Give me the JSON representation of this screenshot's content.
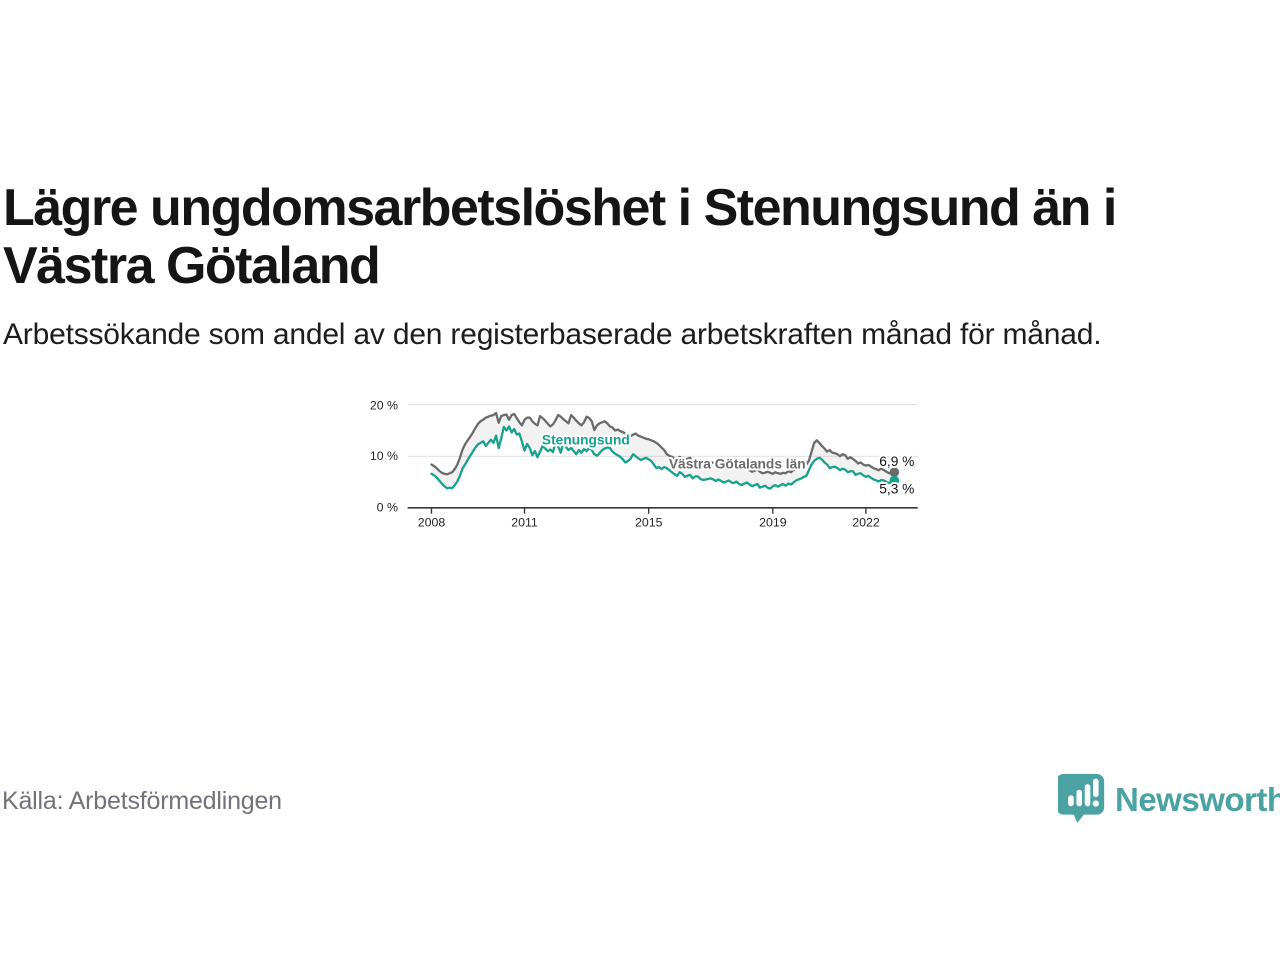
{
  "header": {
    "title": "Lägre ungdomsarbetslöshet i Stenungsund än i Västra Götaland",
    "subtitle": "Arbetssökande som andel av den registerbaserade arbetskraften månad för månad."
  },
  "footer": {
    "source": "Källa: Arbetsförmedlingen",
    "brand": "Newsworthy"
  },
  "colors": {
    "stenungsund_teal": "#16a28d",
    "county_gray": "#6b6b6b",
    "grid": "#d8d8d8",
    "axis": "#383838",
    "band_fill": "rgba(0,0,0,0.05)",
    "brand_teal": "#4ba2a2"
  },
  "chart_data": {
    "type": "line",
    "title": "Lägre ungdomsarbetslöshet i Stenungsund än i Västra Götaland",
    "xlabel": "",
    "ylabel": "",
    "x_start_year": 2008,
    "x_months_per_point": 1,
    "ylim": [
      0,
      20
    ],
    "grid": true,
    "band_fill_between_series": true,
    "y_axis": {
      "tick_values": [
        0,
        10,
        20
      ],
      "tick_labels": [
        "0 %",
        "10 %",
        "20 %"
      ]
    },
    "x_axis": {
      "tick_years": [
        2008,
        2011,
        2015,
        2019,
        2022
      ],
      "tick_labels": [
        "2008",
        "2011",
        "2015",
        "2019",
        "2022"
      ]
    },
    "series": [
      {
        "name": "Stenungsund",
        "color": "#16a28d",
        "end_label": "5,3 %",
        "end_value": 5.3,
        "values": [
          6.6,
          6.3,
          5.9,
          5.3,
          4.7,
          4.2,
          3.8,
          3.9,
          3.8,
          4.4,
          5.1,
          6.2,
          7.6,
          8.4,
          9.3,
          10.1,
          10.9,
          11.7,
          12.3,
          12.6,
          12.9,
          12.0,
          12.6,
          13.2,
          12.6,
          14.0,
          11.6,
          13.5,
          15.7,
          15.0,
          15.8,
          14.6,
          15.3,
          14.2,
          14.4,
          12.8,
          11.1,
          12.4,
          11.6,
          10.2,
          11.0,
          9.8,
          10.9,
          12.0,
          11.5,
          11.0,
          11.3,
          10.8,
          12.8,
          11.9,
          10.7,
          12.6,
          11.8,
          11.2,
          11.6,
          11.0,
          10.4,
          11.2,
          10.7,
          11.4,
          11.0,
          11.6,
          11.2,
          10.4,
          10.1,
          10.6,
          11.2,
          11.5,
          11.7,
          11.6,
          10.9,
          10.5,
          10.2,
          9.9,
          9.4,
          8.8,
          9.1,
          9.5,
          10.4,
          10.0,
          9.6,
          9.3,
          9.5,
          9.7,
          9.4,
          9.1,
          8.4,
          7.7,
          7.9,
          7.5,
          7.9,
          7.7,
          7.3,
          6.9,
          6.5,
          6.2,
          6.9,
          6.6,
          6.0,
          6.2,
          6.4,
          5.7,
          6.1,
          6.1,
          5.6,
          5.4,
          5.5,
          5.6,
          5.7,
          5.5,
          5.2,
          5.5,
          5.2,
          4.9,
          5.1,
          5.3,
          4.9,
          4.8,
          5.1,
          4.6,
          4.4,
          4.7,
          4.9,
          4.5,
          4.2,
          4.4,
          4.6,
          3.9,
          4.1,
          4.3,
          3.9,
          3.7,
          4.2,
          4.4,
          4.1,
          4.4,
          4.6,
          4.3,
          4.7,
          4.5,
          4.9,
          5.3,
          5.5,
          5.7,
          6.0,
          6.2,
          7.3,
          8.4,
          9.1,
          9.5,
          9.7,
          9.4,
          8.8,
          8.4,
          7.7,
          7.9,
          8.0,
          7.7,
          7.3,
          7.6,
          7.4,
          6.9,
          7.1,
          7.1,
          6.4,
          6.6,
          6.7,
          6.3,
          6.0,
          6.2,
          5.8,
          5.5,
          5.3,
          5.1,
          5.4,
          5.3,
          5.0,
          4.8,
          5.0,
          5.3
        ]
      },
      {
        "name": "Västra Götalands län",
        "color": "#6b6b6b",
        "end_label": "6,9 %",
        "end_value": 6.9,
        "values": [
          8.4,
          8.1,
          7.7,
          7.2,
          6.8,
          6.6,
          6.5,
          6.7,
          6.9,
          7.5,
          8.4,
          9.7,
          11.3,
          12.3,
          13.1,
          13.8,
          14.6,
          15.5,
          16.3,
          16.8,
          17.1,
          17.5,
          17.7,
          17.9,
          18.0,
          18.4,
          16.5,
          17.8,
          18.0,
          18.1,
          17.1,
          18.0,
          18.2,
          17.4,
          16.6,
          16.0,
          17.1,
          17.5,
          17.5,
          16.8,
          16.3,
          16.0,
          17.8,
          17.4,
          16.9,
          16.3,
          15.8,
          16.2,
          17.0,
          18.0,
          17.7,
          17.2,
          16.8,
          16.4,
          18.0,
          17.5,
          16.9,
          16.4,
          16.0,
          16.6,
          17.7,
          17.4,
          16.8,
          15.1,
          16.0,
          16.4,
          16.6,
          16.8,
          16.4,
          15.8,
          15.6,
          15.0,
          15.2,
          14.9,
          14.7,
          14.4,
          14.1,
          13.9,
          14.2,
          14.4,
          14.0,
          13.8,
          13.6,
          13.4,
          13.3,
          13.1,
          12.9,
          12.6,
          12.2,
          11.7,
          11.2,
          10.4,
          10.1,
          9.9,
          9.6,
          9.5,
          9.9,
          9.5,
          9.3,
          9.5,
          9.7,
          8.9,
          9.3,
          9.3,
          8.8,
          8.6,
          8.7,
          8.8,
          8.9,
          8.7,
          8.5,
          8.8,
          8.4,
          8.2,
          8.5,
          8.5,
          8.1,
          7.9,
          8.1,
          8.2,
          7.5,
          7.7,
          7.7,
          7.3,
          7.0,
          7.2,
          7.5,
          7.0,
          6.7,
          6.8,
          7.0,
          6.8,
          6.6,
          6.9,
          6.7,
          6.6,
          6.8,
          6.7,
          7.1,
          6.9,
          7.3,
          7.5,
          7.7,
          7.9,
          8.2,
          8.4,
          9.2,
          10.9,
          12.6,
          13.1,
          12.6,
          12.0,
          11.5,
          10.9,
          11.2,
          10.7,
          10.6,
          10.4,
          10.0,
          10.4,
          10.2,
          9.5,
          9.8,
          9.5,
          9.1,
          8.6,
          8.8,
          8.4,
          8.2,
          8.3,
          8.0,
          7.7,
          7.5,
          7.3,
          7.6,
          7.3,
          7.0,
          6.7,
          6.8,
          6.9
        ]
      }
    ]
  }
}
